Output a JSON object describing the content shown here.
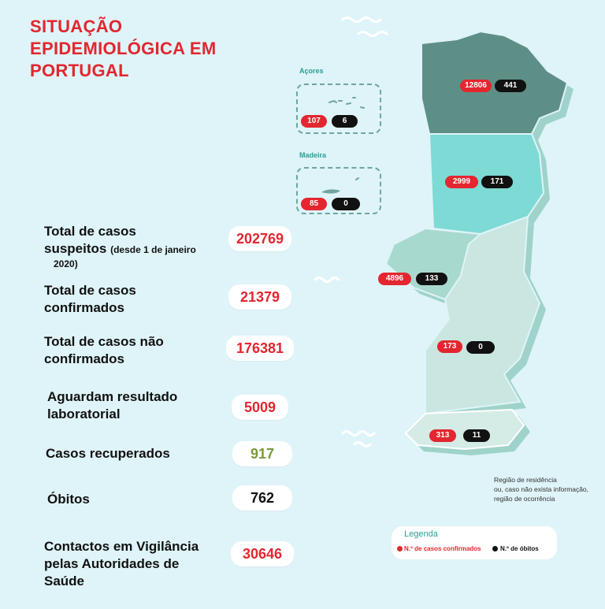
{
  "title": [
    "SITUAÇÃO",
    "EPIDEMIOLÓGICA EM",
    "PORTUGAL"
  ],
  "stats": {
    "suspeitos": {
      "label_line1": "Total de casos",
      "label_line2": "suspeitos",
      "label_sub": "(desde 1 de janeiro",
      "label_sub2": "2020)",
      "value": "202769"
    },
    "confirmados": {
      "label_line1": "Total de casos",
      "label_line2": "confirmados",
      "value": "21379"
    },
    "nao_confirmados": {
      "label_line1": "Total de casos não",
      "label_line2": "confirmados",
      "value": "176381"
    },
    "aguardam": {
      "label_line1": "Aguardam resultado",
      "label_line2": "laboratorial",
      "value": "5009"
    },
    "recuperados": {
      "label_line1": "Casos recuperados",
      "value": "917"
    },
    "obitos": {
      "label_line1": "Óbitos",
      "value": "762"
    },
    "contactos": {
      "label_line1": "Contactos em Vigilância",
      "label_line2": "pelas Autoridades de",
      "label_line3": "Saúde",
      "value": "30646"
    }
  },
  "islands": {
    "acores": {
      "label": "Açores",
      "cases": "107",
      "deaths": "6"
    },
    "madeira": {
      "label": "Madeira",
      "cases": "85",
      "deaths": "0"
    }
  },
  "regions": {
    "norte": {
      "cases": "12806",
      "deaths": "441",
      "color": "#5e8f86"
    },
    "centro": {
      "cases": "2999",
      "deaths": "171",
      "color": "#7ddad4"
    },
    "lisboa": {
      "cases": "4896",
      "deaths": "133",
      "color": "#a8d9cf"
    },
    "alentejo": {
      "cases": "173",
      "deaths": "0",
      "color": "#c9e6e0"
    },
    "algarve": {
      "cases": "313",
      "deaths": "11",
      "color": "#d4ebe6"
    }
  },
  "note": [
    "Região de residência",
    "ou, caso não exista informação,",
    "região de ocorrência"
  ],
  "legend": {
    "title": "Legenda",
    "cases_label": "N.º de casos confirmados",
    "deaths_label": "N.º de óbitos"
  },
  "colors": {
    "accent_red": "#e3262f",
    "recovered_green": "#7a9a3a",
    "background": "#dff4f8",
    "teal": "#2a9d94"
  }
}
